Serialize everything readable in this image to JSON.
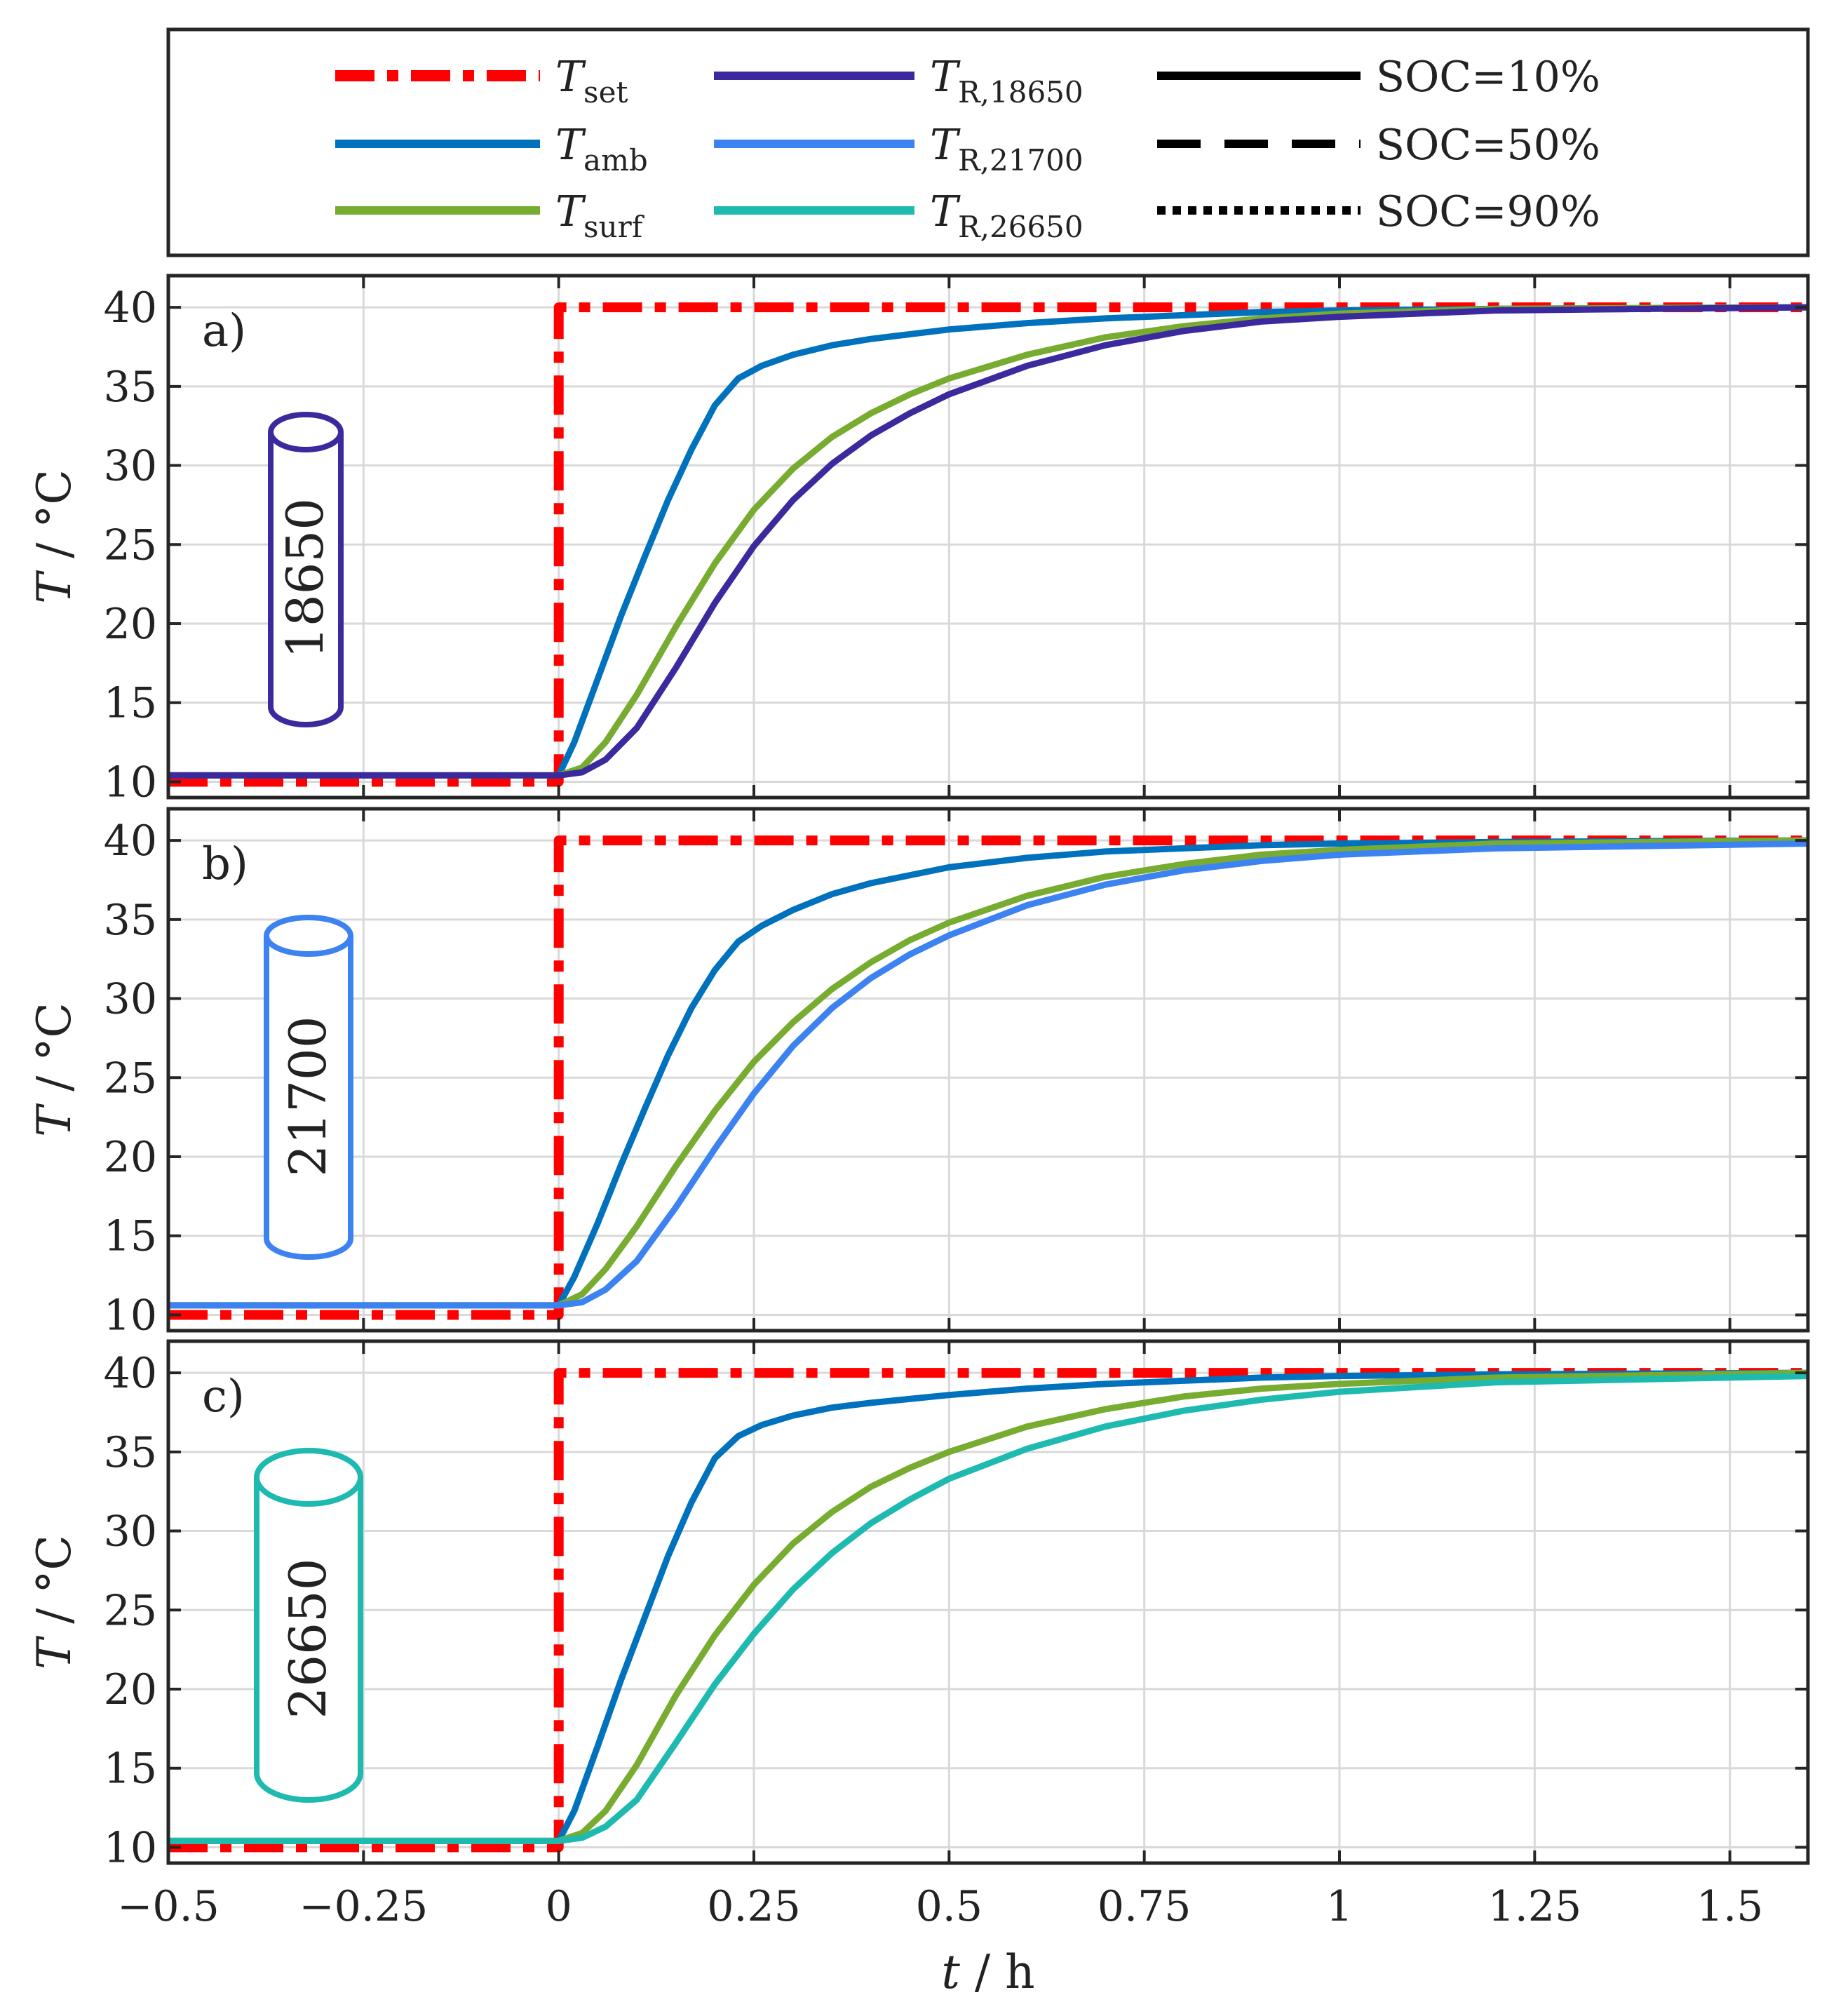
{
  "colors": {
    "T_set": "#ff0000",
    "T_amb": "#0072bd",
    "T_surf": "#77ac30",
    "T_R_18650": "#3b2a9e",
    "T_R_21700": "#3c82f0",
    "T_R_26650": "#1ebab0",
    "soc_line": "#000000",
    "axis": "#262626",
    "grid": "#d9d9d9"
  },
  "legend": {
    "items": [
      {
        "key": "T_set",
        "symbol": "T",
        "sub": "set",
        "style": "dashdot",
        "color_key": "T_set"
      },
      {
        "key": "T_amb",
        "symbol": "T",
        "sub": "amb",
        "style": "solid",
        "color_key": "T_amb"
      },
      {
        "key": "T_surf",
        "symbol": "T",
        "sub": "surf",
        "style": "solid",
        "color_key": "T_surf"
      },
      {
        "key": "T_R_18650",
        "symbol": "T",
        "sub": "R,18650",
        "style": "solid",
        "color_key": "T_R_18650"
      },
      {
        "key": "T_R_21700",
        "symbol": "T",
        "sub": "R,21700",
        "style": "solid",
        "color_key": "T_R_21700"
      },
      {
        "key": "T_R_26650",
        "symbol": "T",
        "sub": "R,26650",
        "style": "solid",
        "color_key": "T_R_26650"
      },
      {
        "key": "soc10",
        "label": "SOC=10%",
        "style": "solid",
        "color_key": "soc_line"
      },
      {
        "key": "soc50",
        "label": "SOC=50%",
        "style": "dashed",
        "color_key": "soc_line"
      },
      {
        "key": "soc90",
        "label": "SOC=90%",
        "style": "dotted",
        "color_key": "soc_line"
      }
    ]
  },
  "chart_data": [
    {
      "type": "line",
      "panel_label": "a)",
      "cell_label": "18650",
      "cell_color_key": "T_R_18650",
      "xlabel": "t / h",
      "ylabel": "T / °C",
      "xlim": [
        -0.5,
        1.6
      ],
      "ylim": [
        9,
        42
      ],
      "xticks": [
        -0.5,
        -0.25,
        0,
        0.25,
        0.5,
        0.75,
        1,
        1.25,
        1.5
      ],
      "xtick_labels": [
        "−0.5",
        "−0.25",
        "0",
        "0.25",
        "0.5",
        "0.75",
        "1",
        "1.25",
        "1.5"
      ],
      "yticks": [
        10,
        15,
        20,
        25,
        30,
        35,
        40
      ],
      "ytick_labels": [
        "10",
        "15",
        "20",
        "25",
        "30",
        "35",
        "40"
      ],
      "grid": true,
      "show_xtick_labels": false,
      "series": [
        {
          "name": "T_set",
          "color_key": "T_set",
          "style": "dashdot",
          "width": 14,
          "x": [
            -0.5,
            0,
            0,
            1.6
          ],
          "y": [
            10,
            10,
            40,
            40
          ]
        },
        {
          "name": "T_amb",
          "color_key": "T_amb",
          "style": "solid",
          "width": 9,
          "x": [
            -0.5,
            0,
            0.02,
            0.05,
            0.08,
            0.11,
            0.14,
            0.17,
            0.2,
            0.23,
            0.26,
            0.3,
            0.35,
            0.4,
            0.5,
            0.6,
            0.7,
            0.8,
            0.9,
            1.0,
            1.2,
            1.6
          ],
          "y": [
            10.4,
            10.4,
            12.5,
            16.5,
            20.5,
            24.2,
            27.8,
            31.0,
            33.8,
            35.5,
            36.3,
            37.0,
            37.6,
            38.0,
            38.6,
            39.0,
            39.3,
            39.5,
            39.7,
            39.8,
            39.9,
            40.0
          ]
        },
        {
          "name": "T_surf",
          "color_key": "T_surf",
          "style": "solid",
          "width": 9,
          "x": [
            -0.5,
            0,
            0.03,
            0.06,
            0.1,
            0.15,
            0.2,
            0.25,
            0.3,
            0.35,
            0.4,
            0.45,
            0.5,
            0.6,
            0.7,
            0.8,
            0.9,
            1.0,
            1.2,
            1.6
          ],
          "y": [
            10.4,
            10.4,
            10.9,
            12.5,
            15.5,
            19.8,
            23.8,
            27.2,
            29.8,
            31.8,
            33.3,
            34.5,
            35.5,
            37.0,
            38.1,
            38.8,
            39.3,
            39.6,
            39.9,
            40.0
          ]
        },
        {
          "name": "T_R_18650",
          "color_key": "T_R_18650",
          "style": "solid",
          "width": 9,
          "x": [
            -0.5,
            0,
            0.03,
            0.06,
            0.1,
            0.15,
            0.2,
            0.25,
            0.3,
            0.35,
            0.4,
            0.45,
            0.5,
            0.6,
            0.7,
            0.8,
            0.9,
            1.0,
            1.2,
            1.6
          ],
          "y": [
            10.4,
            10.4,
            10.6,
            11.4,
            13.4,
            17.2,
            21.3,
            24.9,
            27.8,
            30.1,
            31.9,
            33.3,
            34.5,
            36.3,
            37.6,
            38.5,
            39.1,
            39.4,
            39.8,
            40.0
          ]
        }
      ]
    },
    {
      "type": "line",
      "panel_label": "b)",
      "cell_label": "21700",
      "cell_color_key": "T_R_21700",
      "xlabel": "t / h",
      "ylabel": "T / °C",
      "xlim": [
        -0.5,
        1.6
      ],
      "ylim": [
        9,
        42
      ],
      "xticks": [
        -0.5,
        -0.25,
        0,
        0.25,
        0.5,
        0.75,
        1,
        1.25,
        1.5
      ],
      "xtick_labels": [
        "−0.5",
        "−0.25",
        "0",
        "0.25",
        "0.5",
        "0.75",
        "1",
        "1.25",
        "1.5"
      ],
      "yticks": [
        10,
        15,
        20,
        25,
        30,
        35,
        40
      ],
      "ytick_labels": [
        "10",
        "15",
        "20",
        "25",
        "30",
        "35",
        "40"
      ],
      "grid": true,
      "show_xtick_labels": false,
      "series": [
        {
          "name": "T_set",
          "color_key": "T_set",
          "style": "dashdot",
          "width": 14,
          "x": [
            -0.5,
            0,
            0,
            1.6
          ],
          "y": [
            10,
            10,
            40,
            40
          ]
        },
        {
          "name": "T_amb",
          "color_key": "T_amb",
          "style": "solid",
          "width": 9,
          "x": [
            -0.5,
            0,
            0.02,
            0.05,
            0.08,
            0.11,
            0.14,
            0.17,
            0.2,
            0.23,
            0.26,
            0.3,
            0.35,
            0.4,
            0.5,
            0.6,
            0.7,
            0.8,
            0.9,
            1.0,
            1.2,
            1.6
          ],
          "y": [
            10.6,
            10.6,
            12.4,
            15.8,
            19.5,
            23.0,
            26.4,
            29.4,
            31.8,
            33.6,
            34.6,
            35.6,
            36.6,
            37.3,
            38.3,
            38.9,
            39.3,
            39.5,
            39.7,
            39.8,
            39.9,
            40.0
          ]
        },
        {
          "name": "T_surf",
          "color_key": "T_surf",
          "style": "solid",
          "width": 9,
          "x": [
            -0.5,
            0,
            0.03,
            0.06,
            0.1,
            0.15,
            0.2,
            0.25,
            0.3,
            0.35,
            0.4,
            0.45,
            0.5,
            0.6,
            0.7,
            0.8,
            0.9,
            1.0,
            1.2,
            1.6
          ],
          "y": [
            10.6,
            10.6,
            11.3,
            12.9,
            15.6,
            19.4,
            22.9,
            26.0,
            28.5,
            30.6,
            32.3,
            33.7,
            34.8,
            36.5,
            37.7,
            38.5,
            39.1,
            39.4,
            39.8,
            40.0
          ]
        },
        {
          "name": "T_R_21700",
          "color_key": "T_R_21700",
          "style": "solid",
          "width": 9,
          "x": [
            -0.5,
            0,
            0.03,
            0.06,
            0.1,
            0.15,
            0.2,
            0.25,
            0.3,
            0.35,
            0.4,
            0.45,
            0.5,
            0.6,
            0.7,
            0.8,
            0.9,
            1.0,
            1.2,
            1.6
          ],
          "y": [
            10.6,
            10.6,
            10.8,
            11.6,
            13.4,
            16.8,
            20.5,
            24.0,
            27.0,
            29.4,
            31.3,
            32.8,
            34.0,
            35.9,
            37.2,
            38.1,
            38.7,
            39.1,
            39.5,
            39.8
          ]
        }
      ]
    },
    {
      "type": "line",
      "panel_label": "c)",
      "cell_label": "26650",
      "cell_color_key": "T_R_26650",
      "xlabel": "t / h",
      "ylabel": "T / °C",
      "xlim": [
        -0.5,
        1.6
      ],
      "ylim": [
        9,
        42
      ],
      "xticks": [
        -0.5,
        -0.25,
        0,
        0.25,
        0.5,
        0.75,
        1,
        1.25,
        1.5
      ],
      "xtick_labels": [
        "−0.5",
        "−0.25",
        "0",
        "0.25",
        "0.5",
        "0.75",
        "1",
        "1.25",
        "1.5"
      ],
      "yticks": [
        10,
        15,
        20,
        25,
        30,
        35,
        40
      ],
      "ytick_labels": [
        "10",
        "15",
        "20",
        "25",
        "30",
        "35",
        "40"
      ],
      "grid": true,
      "show_xtick_labels": true,
      "series": [
        {
          "name": "T_set",
          "color_key": "T_set",
          "style": "dashdot",
          "width": 14,
          "x": [
            -0.5,
            0,
            0,
            1.6
          ],
          "y": [
            10,
            10,
            40,
            40
          ]
        },
        {
          "name": "T_amb",
          "color_key": "T_amb",
          "style": "solid",
          "width": 9,
          "x": [
            -0.5,
            0,
            0.02,
            0.05,
            0.08,
            0.11,
            0.14,
            0.17,
            0.2,
            0.23,
            0.26,
            0.3,
            0.35,
            0.4,
            0.5,
            0.6,
            0.7,
            0.8,
            0.9,
            1.0,
            1.2,
            1.6
          ],
          "y": [
            10.4,
            10.4,
            12.3,
            16.4,
            20.6,
            24.5,
            28.4,
            31.8,
            34.6,
            36.0,
            36.7,
            37.3,
            37.8,
            38.1,
            38.6,
            39.0,
            39.3,
            39.5,
            39.7,
            39.8,
            39.9,
            40.0
          ]
        },
        {
          "name": "T_surf",
          "color_key": "T_surf",
          "style": "solid",
          "width": 9,
          "x": [
            -0.5,
            0,
            0.03,
            0.06,
            0.1,
            0.15,
            0.2,
            0.25,
            0.3,
            0.35,
            0.4,
            0.45,
            0.5,
            0.6,
            0.7,
            0.8,
            0.9,
            1.0,
            1.2,
            1.6
          ],
          "y": [
            10.4,
            10.4,
            10.9,
            12.3,
            15.2,
            19.6,
            23.4,
            26.6,
            29.2,
            31.2,
            32.8,
            34.0,
            35.0,
            36.6,
            37.7,
            38.5,
            39.0,
            39.3,
            39.7,
            40.0
          ]
        },
        {
          "name": "T_R_26650",
          "color_key": "T_R_26650",
          "style": "solid",
          "width": 9,
          "x": [
            -0.5,
            0,
            0.03,
            0.06,
            0.1,
            0.15,
            0.2,
            0.25,
            0.3,
            0.35,
            0.4,
            0.45,
            0.5,
            0.6,
            0.7,
            0.8,
            0.9,
            1.0,
            1.2,
            1.6
          ],
          "y": [
            10.4,
            10.4,
            10.6,
            11.3,
            13.0,
            16.6,
            20.3,
            23.5,
            26.3,
            28.6,
            30.5,
            32.0,
            33.3,
            35.2,
            36.6,
            37.6,
            38.3,
            38.8,
            39.4,
            39.8
          ]
        }
      ]
    }
  ]
}
